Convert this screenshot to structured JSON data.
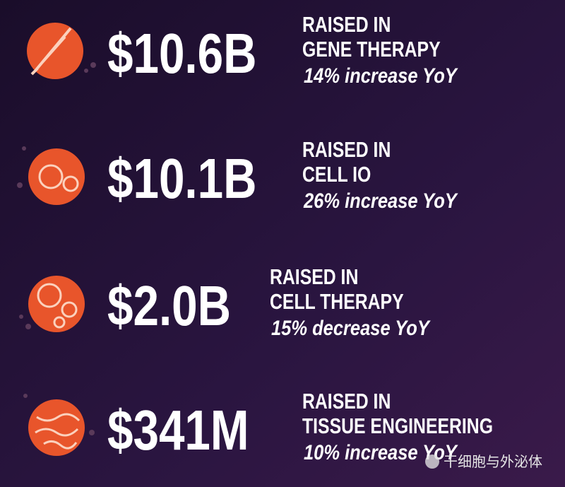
{
  "items": [
    {
      "amount": "$10.6B",
      "line1": "RAISED IN",
      "line2": "GENE THERAPY",
      "change": "14% increase YoY"
    },
    {
      "amount": "$10.1B",
      "line1": "RAISED IN",
      "line2": "CELL IO",
      "change": "26% increase YoY"
    },
    {
      "amount": "$2.0B",
      "line1": "RAISED IN",
      "line2": "CELL THERAPY",
      "change": "15% decrease YoY"
    },
    {
      "amount": "$341M",
      "line1": "RAISED IN",
      "line2": "TISSUE ENGINEERING",
      "change": "10% increase YoY"
    }
  ],
  "watermark": "干细胞与外泌体"
}
